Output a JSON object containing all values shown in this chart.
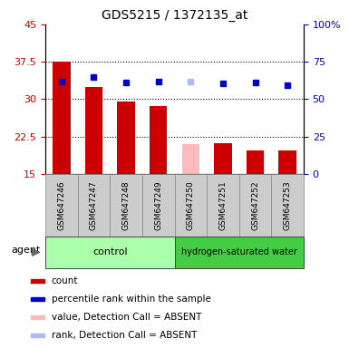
{
  "title": "GDS5215 / 1372135_at",
  "samples": [
    "GSM647246",
    "GSM647247",
    "GSM647248",
    "GSM647249",
    "GSM647250",
    "GSM647251",
    "GSM647252",
    "GSM647253"
  ],
  "bar_values": [
    37.5,
    32.5,
    29.6,
    28.7,
    21.0,
    21.2,
    19.8,
    19.8
  ],
  "bar_colors": [
    "#cc0000",
    "#cc0000",
    "#cc0000",
    "#cc0000",
    "#ffbbbb",
    "#cc0000",
    "#cc0000",
    "#cc0000"
  ],
  "rank_pct": [
    62.0,
    65.0,
    61.0,
    62.0,
    62.0,
    60.5,
    61.0,
    59.5
  ],
  "rank_colors": [
    "#0000cc",
    "#0000cc",
    "#0000cc",
    "#0000cc",
    "#aabbff",
    "#0000cc",
    "#0000cc",
    "#0000cc"
  ],
  "ylim_left": [
    15,
    45
  ],
  "ylim_right": [
    0,
    100
  ],
  "yticks_left": [
    15,
    22.5,
    30,
    37.5,
    45
  ],
  "ytick_labels_left": [
    "15",
    "22.5",
    "30",
    "37.5",
    "45"
  ],
  "yticks_right": [
    0,
    25,
    50,
    75,
    100
  ],
  "ytick_labels_right": [
    "0",
    "25",
    "50",
    "75",
    "100%"
  ],
  "grid_lines": [
    22.5,
    30.0,
    37.5
  ],
  "control_color_light": "#aaffaa",
  "control_color_dark": "#55cc55",
  "group_divider": 3.5,
  "bar_width": 0.55,
  "legend_items": [
    {
      "label": "count",
      "color": "#cc0000"
    },
    {
      "label": "percentile rank within the sample",
      "color": "#0000cc"
    },
    {
      "label": "value, Detection Call = ABSENT",
      "color": "#ffbbbb"
    },
    {
      "label": "rank, Detection Call = ABSENT",
      "color": "#aabbff"
    }
  ]
}
